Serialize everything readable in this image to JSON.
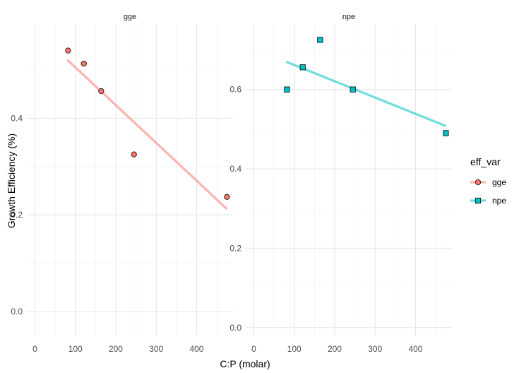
{
  "chart_data": {
    "type": "scatter",
    "xlabel": "C:P (molar)",
    "ylabel": "Growth Efficiency (%)",
    "xlim": [
      -20,
      490
    ],
    "x_ticks": [
      0,
      100,
      200,
      300,
      400
    ],
    "grid": true,
    "legend": {
      "title": "eff_var",
      "placement": "right",
      "entries": [
        "gge",
        "npe"
      ]
    },
    "colors": {
      "gge": "#f8766d",
      "npe": "#00bfc4"
    },
    "panels": [
      {
        "strip": "gge",
        "series": "gge",
        "marker": "circle",
        "ylim": [
          -0.05,
          0.595
        ],
        "y_ticks": [
          0.0,
          0.2,
          0.4
        ],
        "y_tick_labels": [
          "0.0",
          "0.2",
          "0.4"
        ],
        "points": [
          {
            "x": 82,
            "y": 0.54
          },
          {
            "x": 121,
            "y": 0.513
          },
          {
            "x": 164,
            "y": 0.456
          },
          {
            "x": 245,
            "y": 0.325
          },
          {
            "x": 475,
            "y": 0.237
          }
        ],
        "fit": {
          "x": [
            80,
            475
          ],
          "y": [
            0.521,
            0.212
          ]
        }
      },
      {
        "strip": "npe",
        "series": "npe",
        "marker": "square",
        "ylim": [
          -0.02,
          0.765
        ],
        "y_ticks": [
          0.0,
          0.2,
          0.4,
          0.6
        ],
        "y_tick_labels": [
          "0.0",
          "0.2",
          "0.4",
          "0.6"
        ],
        "points": [
          {
            "x": 82,
            "y": 0.6
          },
          {
            "x": 121,
            "y": 0.656
          },
          {
            "x": 164,
            "y": 0.725
          },
          {
            "x": 245,
            "y": 0.6
          },
          {
            "x": 475,
            "y": 0.49
          }
        ],
        "fit": {
          "x": [
            80,
            475
          ],
          "y": [
            0.67,
            0.508
          ]
        }
      }
    ]
  }
}
